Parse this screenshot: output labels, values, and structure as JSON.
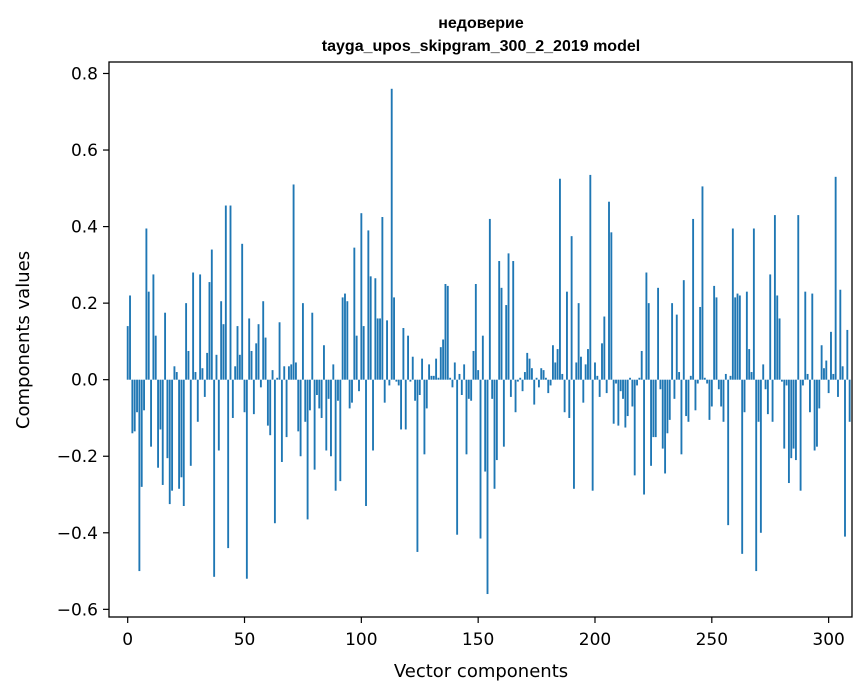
{
  "chart_data": {
    "type": "bar",
    "title": "недоверие",
    "subtitle": "tayga_upos_skipgram_300_2_2019 model",
    "xlabel": "Vector components",
    "ylabel": "Components values",
    "xlim": [
      -8,
      310
    ],
    "ylim": [
      -0.62,
      0.83
    ],
    "xticks": [
      0,
      50,
      100,
      150,
      200,
      250,
      300
    ],
    "yticks": [
      -0.6,
      -0.4,
      -0.2,
      0.0,
      0.2,
      0.4,
      0.6,
      0.8
    ],
    "ytick_labels": [
      "−0.6",
      "−0.4",
      "−0.2",
      "0.0",
      "0.2",
      "0.4",
      "0.6",
      "0.8"
    ],
    "xtick_labels": [
      "0",
      "50",
      "100",
      "150",
      "200",
      "250",
      "300"
    ],
    "bar_color": "#1f77b4",
    "values": [
      0.14,
      0.22,
      -0.14,
      -0.135,
      -0.085,
      -0.5,
      -0.28,
      -0.08,
      0.395,
      0.23,
      -0.175,
      0.275,
      0.115,
      -0.23,
      -0.13,
      -0.275,
      0.175,
      -0.205,
      -0.325,
      -0.29,
      0.035,
      0.02,
      -0.285,
      -0.255,
      -0.33,
      0.2,
      0.075,
      -0.225,
      0.28,
      0.02,
      -0.11,
      0.275,
      0.03,
      -0.045,
      0.07,
      0.255,
      0.34,
      -0.515,
      0.065,
      -0.185,
      0.205,
      0.145,
      0.455,
      -0.44,
      0.455,
      -0.1,
      0.035,
      0.14,
      0.065,
      0.355,
      -0.085,
      -0.52,
      0.16,
      0.075,
      -0.09,
      0.095,
      0.145,
      -0.02,
      0.205,
      0.11,
      -0.12,
      -0.145,
      0.025,
      -0.375,
      0.005,
      0.15,
      -0.215,
      0.035,
      -0.15,
      0.035,
      0.04,
      0.51,
      0.045,
      -0.135,
      -0.2,
      0.2,
      -0.11,
      -0.365,
      -0.08,
      0.175,
      -0.235,
      -0.04,
      -0.075,
      -0.1,
      0.09,
      -0.185,
      -0.05,
      -0.2,
      0.04,
      -0.29,
      -0.055,
      -0.265,
      0.215,
      0.225,
      0.205,
      -0.075,
      -0.06,
      0.345,
      0.115,
      -0.03,
      0.435,
      0.14,
      -0.33,
      0.39,
      0.27,
      -0.185,
      0.265,
      0.16,
      0.16,
      0.425,
      -0.06,
      0.155,
      -0.015,
      0.76,
      0.215,
      -0.005,
      -0.015,
      -0.13,
      0.135,
      -0.13,
      0.115,
      -0.005,
      0.06,
      -0.055,
      -0.45,
      -0.04,
      0.055,
      -0.195,
      -0.075,
      0.04,
      0.01,
      0.01,
      0.055,
      0.005,
      0.085,
      0.105,
      0.25,
      0.245,
      0.005,
      -0.02,
      0.045,
      -0.405,
      0.015,
      -0.04,
      0.04,
      -0.195,
      -0.05,
      -0.055,
      0.075,
      0.25,
      0.025,
      -0.415,
      0.115,
      -0.24,
      -0.56,
      0.42,
      -0.05,
      -0.285,
      -0.21,
      0.31,
      0.24,
      -0.175,
      0.195,
      0.33,
      -0.045,
      0.31,
      -0.085,
      -0.005,
      0.005,
      -0.03,
      0.02,
      0.07,
      0.055,
      0.03,
      -0.065,
      0.005,
      -0.02,
      0.03,
      0.025,
      0.005,
      -0.035,
      -0.015,
      0.09,
      0.045,
      0.08,
      0.525,
      0.015,
      -0.085,
      0.23,
      -0.1,
      0.375,
      -0.285,
      0.045,
      0.2,
      0.06,
      -0.06,
      0.04,
      0.08,
      0.535,
      -0.29,
      0.045,
      0.01,
      -0.045,
      0.095,
      0.165,
      -0.035,
      0.465,
      0.385,
      -0.115,
      -0.01,
      -0.12,
      -0.03,
      -0.05,
      -0.125,
      -0.095,
      0.005,
      -0.07,
      -0.25,
      -0.015,
      0.005,
      0.075,
      -0.3,
      0.28,
      0.2,
      -0.225,
      -0.15,
      -0.15,
      0.24,
      -0.025,
      -0.18,
      -0.245,
      -0.14,
      -0.105,
      0.2,
      -0.05,
      0.17,
      0.02,
      -0.195,
      0.26,
      -0.095,
      -0.11,
      0.01,
      0.42,
      -0.08,
      -0.01,
      0.19,
      0.505,
      0.005,
      -0.01,
      -0.105,
      -0.07,
      0.245,
      0.215,
      -0.025,
      -0.07,
      -0.11,
      0.015,
      -0.38,
      0.01,
      0.395,
      0.215,
      0.225,
      0.22,
      -0.455,
      -0.085,
      0.23,
      0.08,
      0.02,
      0.395,
      -0.5,
      -0.11,
      -0.4,
      0.04,
      -0.025,
      -0.09,
      0.275,
      -0.11,
      0.43,
      0.22,
      0.16,
      -0.005,
      -0.18,
      -0.015,
      -0.27,
      -0.205,
      -0.18,
      -0.21,
      0.43,
      -0.29,
      -0.015,
      0.23,
      0.015,
      -0.085,
      0.225,
      -0.185,
      -0.175,
      -0.075,
      0.09,
      0.03,
      0.05,
      -0.035,
      0.125,
      0.015,
      0.53,
      -0.045,
      0.235,
      0.035,
      -0.41,
      0.13,
      -0.11
    ]
  }
}
